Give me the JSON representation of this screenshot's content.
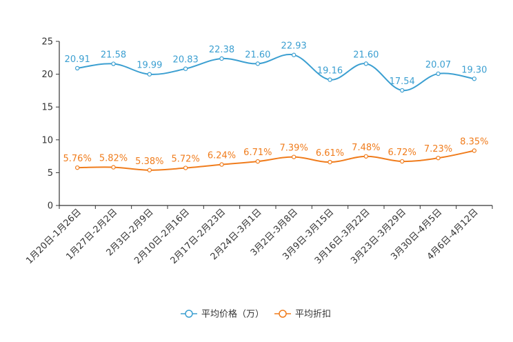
{
  "chart_data": {
    "type": "line",
    "categories": [
      "1月20日-1月26日",
      "1月27日-2月2日",
      "2月3日-2月9日",
      "2月10日-2月16日",
      "2月17日-2月23日",
      "2月24日-3月1日",
      "3月2日-3月8日",
      "3月9日-3月15日",
      "3月16日-3月22日",
      "3月23日-3月29日",
      "3月30日-4月5日",
      "4月6日-4月12日"
    ],
    "series": [
      {
        "name": "平均价格（万）",
        "color": "#3b9fd1",
        "values": [
          20.91,
          21.58,
          19.99,
          20.83,
          22.38,
          21.6,
          22.93,
          19.16,
          21.6,
          17.54,
          20.07,
          19.3
        ],
        "labels": [
          "20.91",
          "21.58",
          "19.99",
          "20.83",
          "22.38",
          "21.60",
          "22.93",
          "19.16",
          "21.60",
          "17.54",
          "20.07",
          "19.30"
        ]
      },
      {
        "name": "平均折扣",
        "color": "#f07c1c",
        "values": [
          5.76,
          5.82,
          5.38,
          5.72,
          6.24,
          6.71,
          7.39,
          6.61,
          7.48,
          6.72,
          7.23,
          8.35
        ],
        "labels": [
          "5.76%",
          "5.82%",
          "5.38%",
          "5.72%",
          "6.24%",
          "6.71%",
          "7.39%",
          "6.61%",
          "7.48%",
          "6.72%",
          "7.23%",
          "8.35%"
        ]
      }
    ],
    "yticks": [
      "0",
      "5",
      "10",
      "15",
      "20",
      "25"
    ],
    "ylim": [
      0,
      25
    ],
    "title": "",
    "xlabel": "",
    "ylabel": "",
    "grid": false,
    "legend_position": "bottom-center"
  }
}
